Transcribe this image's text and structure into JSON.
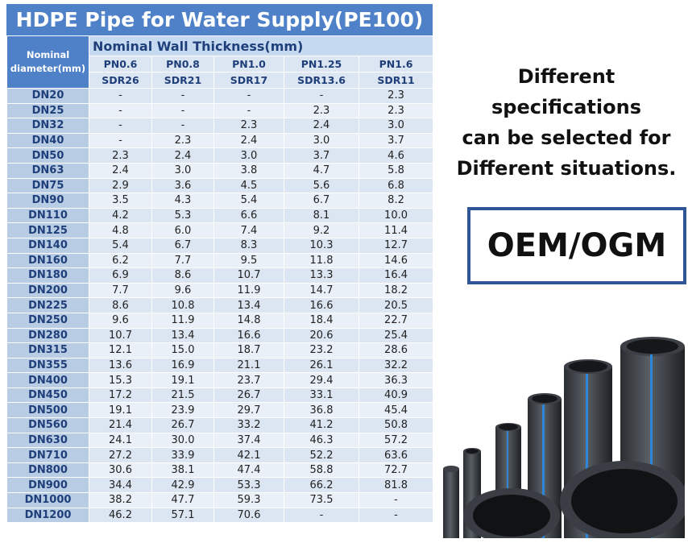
{
  "table": {
    "title": "HDPE Pipe for Water Supply(PE100)",
    "diameter_header": "Nominal diameter(mm)",
    "thickness_header": "Nominal Wall Thickness(mm)",
    "pn": [
      "PN0.6",
      "PN0.8",
      "PN1.0",
      "PN1.25",
      "PN1.6"
    ],
    "sdr": [
      "SDR26",
      "SDR21",
      "SDR17",
      "SDR13.6",
      "SDR11"
    ],
    "rows": [
      [
        "DN20",
        "-",
        "-",
        "-",
        "-",
        "2.3"
      ],
      [
        "DN25",
        "-",
        "-",
        "-",
        "2.3",
        "2.3"
      ],
      [
        "DN32",
        "-",
        "-",
        "2.3",
        "2.4",
        "3.0"
      ],
      [
        "DN40",
        "-",
        "2.3",
        "2.4",
        "3.0",
        "3.7"
      ],
      [
        "DN50",
        "2.3",
        "2.4",
        "3.0",
        "3.7",
        "4.6"
      ],
      [
        "DN63",
        "2.4",
        "3.0",
        "3.8",
        "4.7",
        "5.8"
      ],
      [
        "DN75",
        "2.9",
        "3.6",
        "4.5",
        "5.6",
        "6.8"
      ],
      [
        "DN90",
        "3.5",
        "4.3",
        "5.4",
        "6.7",
        "8.2"
      ],
      [
        "DN110",
        "4.2",
        "5.3",
        "6.6",
        "8.1",
        "10.0"
      ],
      [
        "DN125",
        "4.8",
        "6.0",
        "7.4",
        "9.2",
        "11.4"
      ],
      [
        "DN140",
        "5.4",
        "6.7",
        "8.3",
        "10.3",
        "12.7"
      ],
      [
        "DN160",
        "6.2",
        "7.7",
        "9.5",
        "11.8",
        "14.6"
      ],
      [
        "DN180",
        "6.9",
        "8.6",
        "10.7",
        "13.3",
        "16.4"
      ],
      [
        "DN200",
        "7.7",
        "9.6",
        "11.9",
        "14.7",
        "18.2"
      ],
      [
        "DN225",
        "8.6",
        "10.8",
        "13.4",
        "16.6",
        "20.5"
      ],
      [
        "DN250",
        "9.6",
        "11.9",
        "14.8",
        "18.4",
        "22.7"
      ],
      [
        "DN280",
        "10.7",
        "13.4",
        "16.6",
        "20.6",
        "25.4"
      ],
      [
        "DN315",
        "12.1",
        "15.0",
        "18.7",
        "23.2",
        "28.6"
      ],
      [
        "DN355",
        "13.6",
        "16.9",
        "21.1",
        "26.1",
        "32.2"
      ],
      [
        "DN400",
        "15.3",
        "19.1",
        "23.7",
        "29.4",
        "36.3"
      ],
      [
        "DN450",
        "17.2",
        "21.5",
        "26.7",
        "33.1",
        "40.9"
      ],
      [
        "DN500",
        "19.1",
        "23.9",
        "29.7",
        "36.8",
        "45.4"
      ],
      [
        "DN560",
        "21.4",
        "26.7",
        "33.2",
        "41.2",
        "50.8"
      ],
      [
        "DN630",
        "24.1",
        "30.0",
        "37.4",
        "46.3",
        "57.2"
      ],
      [
        "DN710",
        "27.2",
        "33.9",
        "42.1",
        "52.2",
        "63.6"
      ],
      [
        "DN800",
        "30.6",
        "38.1",
        "47.4",
        "58.8",
        "72.7"
      ],
      [
        "DN900",
        "34.4",
        "42.9",
        "53.3",
        "66.2",
        "81.8"
      ],
      [
        "DN1000",
        "38.2",
        "47.7",
        "59.3",
        "73.5",
        "-"
      ],
      [
        "DN1200",
        "46.2",
        "57.1",
        "70.6",
        "-",
        "-"
      ]
    ]
  },
  "side": {
    "lines": [
      "Different specifications",
      "can be selected for",
      "Different situations."
    ],
    "badge": "OEM/OGM"
  }
}
